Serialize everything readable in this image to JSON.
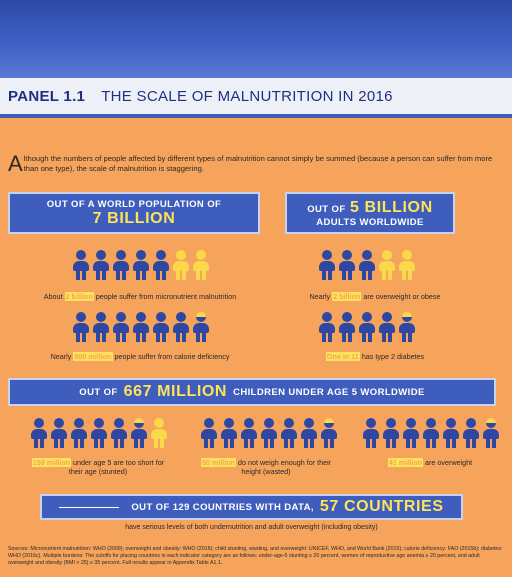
{
  "header": {
    "panel_label": "PANEL 1.1",
    "panel_title": "THE SCALE OF MALNUTRITION IN 2016"
  },
  "intro": {
    "drop_letter": "A",
    "text": "lthough the numbers of people affected by different types of malnutrition cannot simply be summed (because a person can suffer from more than one type), the scale of malnutrition is staggering."
  },
  "world": {
    "line1": "OUT OF A WORLD POPULATION OF",
    "line2": "7 BILLION",
    "micronutrient_highlight": "2 billion",
    "micronutrient_text": "people suffer from micronutrient malnutrition",
    "micronutrient_prefix": "About",
    "calorie_prefix": "Nearly",
    "calorie_highlight": "800 million",
    "calorie_text": "people suffer from calorie deficiency"
  },
  "adults": {
    "line1_prefix": "OUT OF",
    "line1_big": "5 BILLION",
    "line2": "ADULTS WORLDWIDE",
    "overweight_prefix": "Nearly",
    "overweight_highlight": "2 billion",
    "overweight_text": "are overweight or obese",
    "diabetes_highlight": "One in 11",
    "diabetes_text": "has type 2 diabetes"
  },
  "children": {
    "prefix": "OUT OF",
    "big": "667 MILLION",
    "suffix": "CHILDREN UNDER AGE 5 WORLDWIDE",
    "stunted_highlight": "159 million",
    "stunted_text": "under age 5 are too short for their age (stunted)",
    "wasted_highlight": "50 million",
    "wasted_text": "do not weigh enough for their height (wasted)",
    "overweight_highlight": "41 million",
    "overweight_text": "are overweight"
  },
  "countries": {
    "prefix": "OUT OF 129 COUNTRIES WITH DATA,",
    "big": "57 COUNTRIES",
    "subline": "have serious levels of both undernutrition and adult overweight (including obesity)"
  },
  "sources": "Sources: Micronutrient malnutrition: WHO (2009); overweight and obesity: WHO (2016); child stunting, wasting, and overweight: UNICEF, WHO, and World Bank (2015); calorie deficiency: FAO (2015b); diabetes: WHO (2016c). Multiple burdens: The cutoffs for placing countries in each indicator category are as follows: under-age-5 stunting ≥ 20 percent, women of reproductive age anemia ≥ 20 percent, and adult overweight and obesity (BMI > 25) ≥ 35 percent. Full results appear in Appendix Table A1.1.",
  "colors": {
    "background": "#f6a35c",
    "box_blue": "#3f5dbc",
    "person_blue": "#2e47a3",
    "person_yellow": "#f9d84a",
    "highlight_yellow": "#fde35a"
  },
  "figures": {
    "micronutrient": [
      "blue",
      "blue",
      "blue",
      "blue",
      "blue",
      "yellow",
      "yellow"
    ],
    "calorie": [
      "blue",
      "blue",
      "blue",
      "blue",
      "blue",
      "blue",
      "half"
    ],
    "adult_overweight": [
      "blue",
      "blue",
      "blue",
      "yellow",
      "yellow"
    ],
    "adult_diabetes": [
      "blue",
      "blue",
      "blue",
      "blue",
      "half"
    ],
    "stunted": [
      "blue",
      "blue",
      "blue",
      "blue",
      "blue",
      "half",
      "yellow"
    ],
    "wasted": [
      "blue",
      "blue",
      "blue",
      "blue",
      "blue",
      "blue",
      "half"
    ],
    "child_overweight": [
      "blue",
      "blue",
      "blue",
      "blue",
      "blue",
      "blue",
      "half"
    ]
  }
}
